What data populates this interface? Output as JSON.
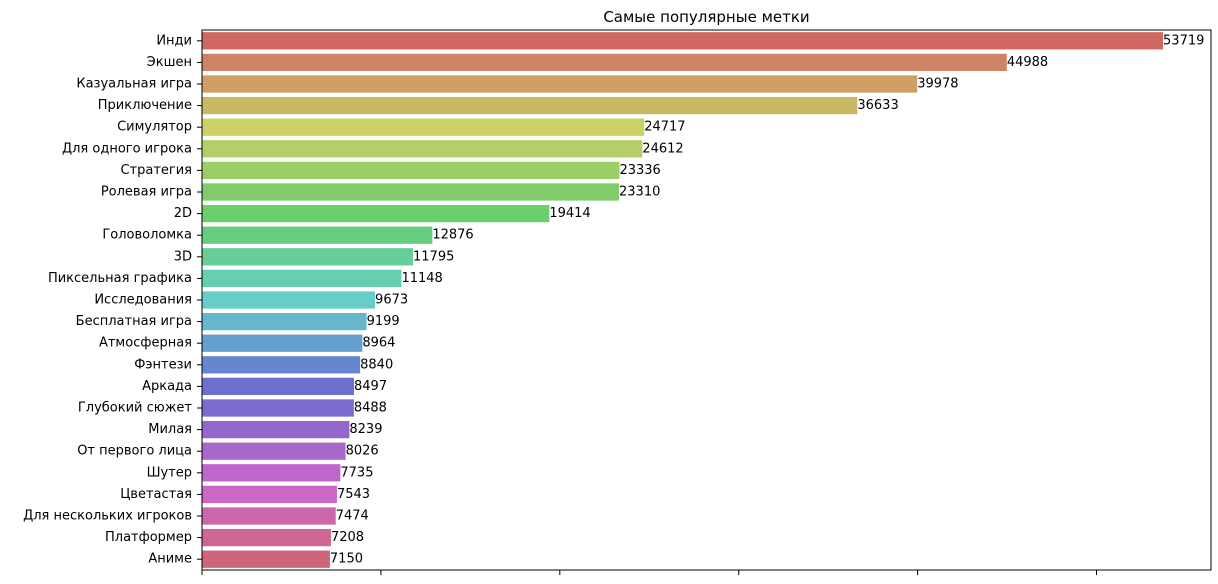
{
  "chart_data": {
    "type": "bar",
    "orientation": "horizontal",
    "title": "Самые популярные метки",
    "xlabel": "",
    "ylabel": "",
    "xlim": [
      0,
      56400
    ],
    "grid": false,
    "legend": "none",
    "categories": [
      "Инди",
      "Экшен",
      "Казуальная игра",
      "Приключение",
      "Симулятор",
      "Для одного игрока",
      "Стратегия",
      "Ролевая игра",
      "2D",
      "Головоломка",
      "3D",
      "Пиксельная графика",
      "Исследования",
      "Бесплатная игра",
      "Атмосферная",
      "Фэнтези",
      "Аркада",
      "Глубокий сюжет",
      "Милая",
      "От первого лица",
      "Шутер",
      "Цветастая",
      "Для нескольких игроков",
      "Платформер",
      "Аниме"
    ],
    "values": [
      53719,
      44988,
      39978,
      36633,
      24717,
      24612,
      23336,
      23310,
      19414,
      12876,
      11795,
      11148,
      9673,
      9199,
      8964,
      8840,
      8497,
      8488,
      8239,
      8026,
      7735,
      7543,
      7474,
      7208,
      7150
    ],
    "colors": [
      "#d06761",
      "#cf8467",
      "#d19f64",
      "#cbb864",
      "#c9d262",
      "#b3cf68",
      "#99cf66",
      "#80cc6a",
      "#6bcf6b",
      "#67cd81",
      "#68cd98",
      "#66ceb1",
      "#66cec8",
      "#66b7cd",
      "#659fcd",
      "#6687cd",
      "#6b70cf",
      "#7d6bcf",
      "#9366ce",
      "#aa68cd",
      "#bf66ce",
      "#cb67c4",
      "#ce66ab",
      "#d06693",
      "#cf657a"
    ]
  }
}
